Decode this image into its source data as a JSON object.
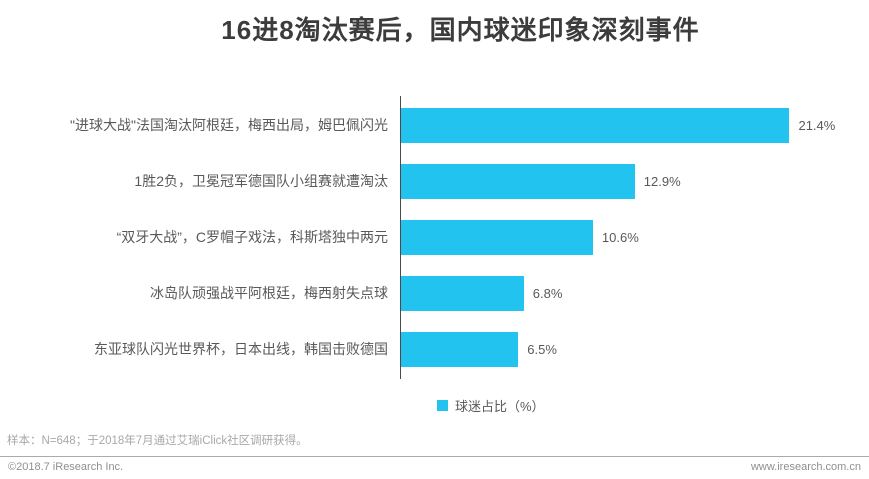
{
  "title": "16进8淘汰赛后，国内球迷印象深刻事件",
  "chart_data": {
    "type": "bar",
    "orientation": "horizontal",
    "title": "16进8淘汰赛后，国内球迷印象深刻事件",
    "categories": [
      "\"进球大战\"法国淘汰阿根廷，梅西出局，姆巴佩闪光",
      "1胜2负，卫冕冠军德国队小组赛就遭淘汰",
      "“双牙大战”，C罗帽子戏法，科斯塔独中两元",
      "冰岛队顽强战平阿根廷，梅西射失点球",
      "东亚球队闪光世界杯，日本出线，韩国击败德国"
    ],
    "values": [
      21.4,
      12.9,
      10.6,
      6.8,
      6.5
    ],
    "value_labels": [
      "21.4%",
      "12.9%",
      "10.6%",
      "6.8%",
      "6.5%"
    ],
    "series_name": "球迷占比（%）",
    "xlim": [
      0,
      25
    ],
    "grid": false,
    "legend_position": "bottom",
    "bar_color": "#22c3ee",
    "axis_color": "#4a4a4a"
  },
  "legend": {
    "swatch_color": "#22c3ee",
    "label": "球迷占比（%）"
  },
  "footnote": "样本：N=648；于2018年7月通过艾瑞iClick社区调研获得。",
  "footer": {
    "left": "©2018.7 iResearch Inc.",
    "right": "www.iresearch.com.cn"
  }
}
